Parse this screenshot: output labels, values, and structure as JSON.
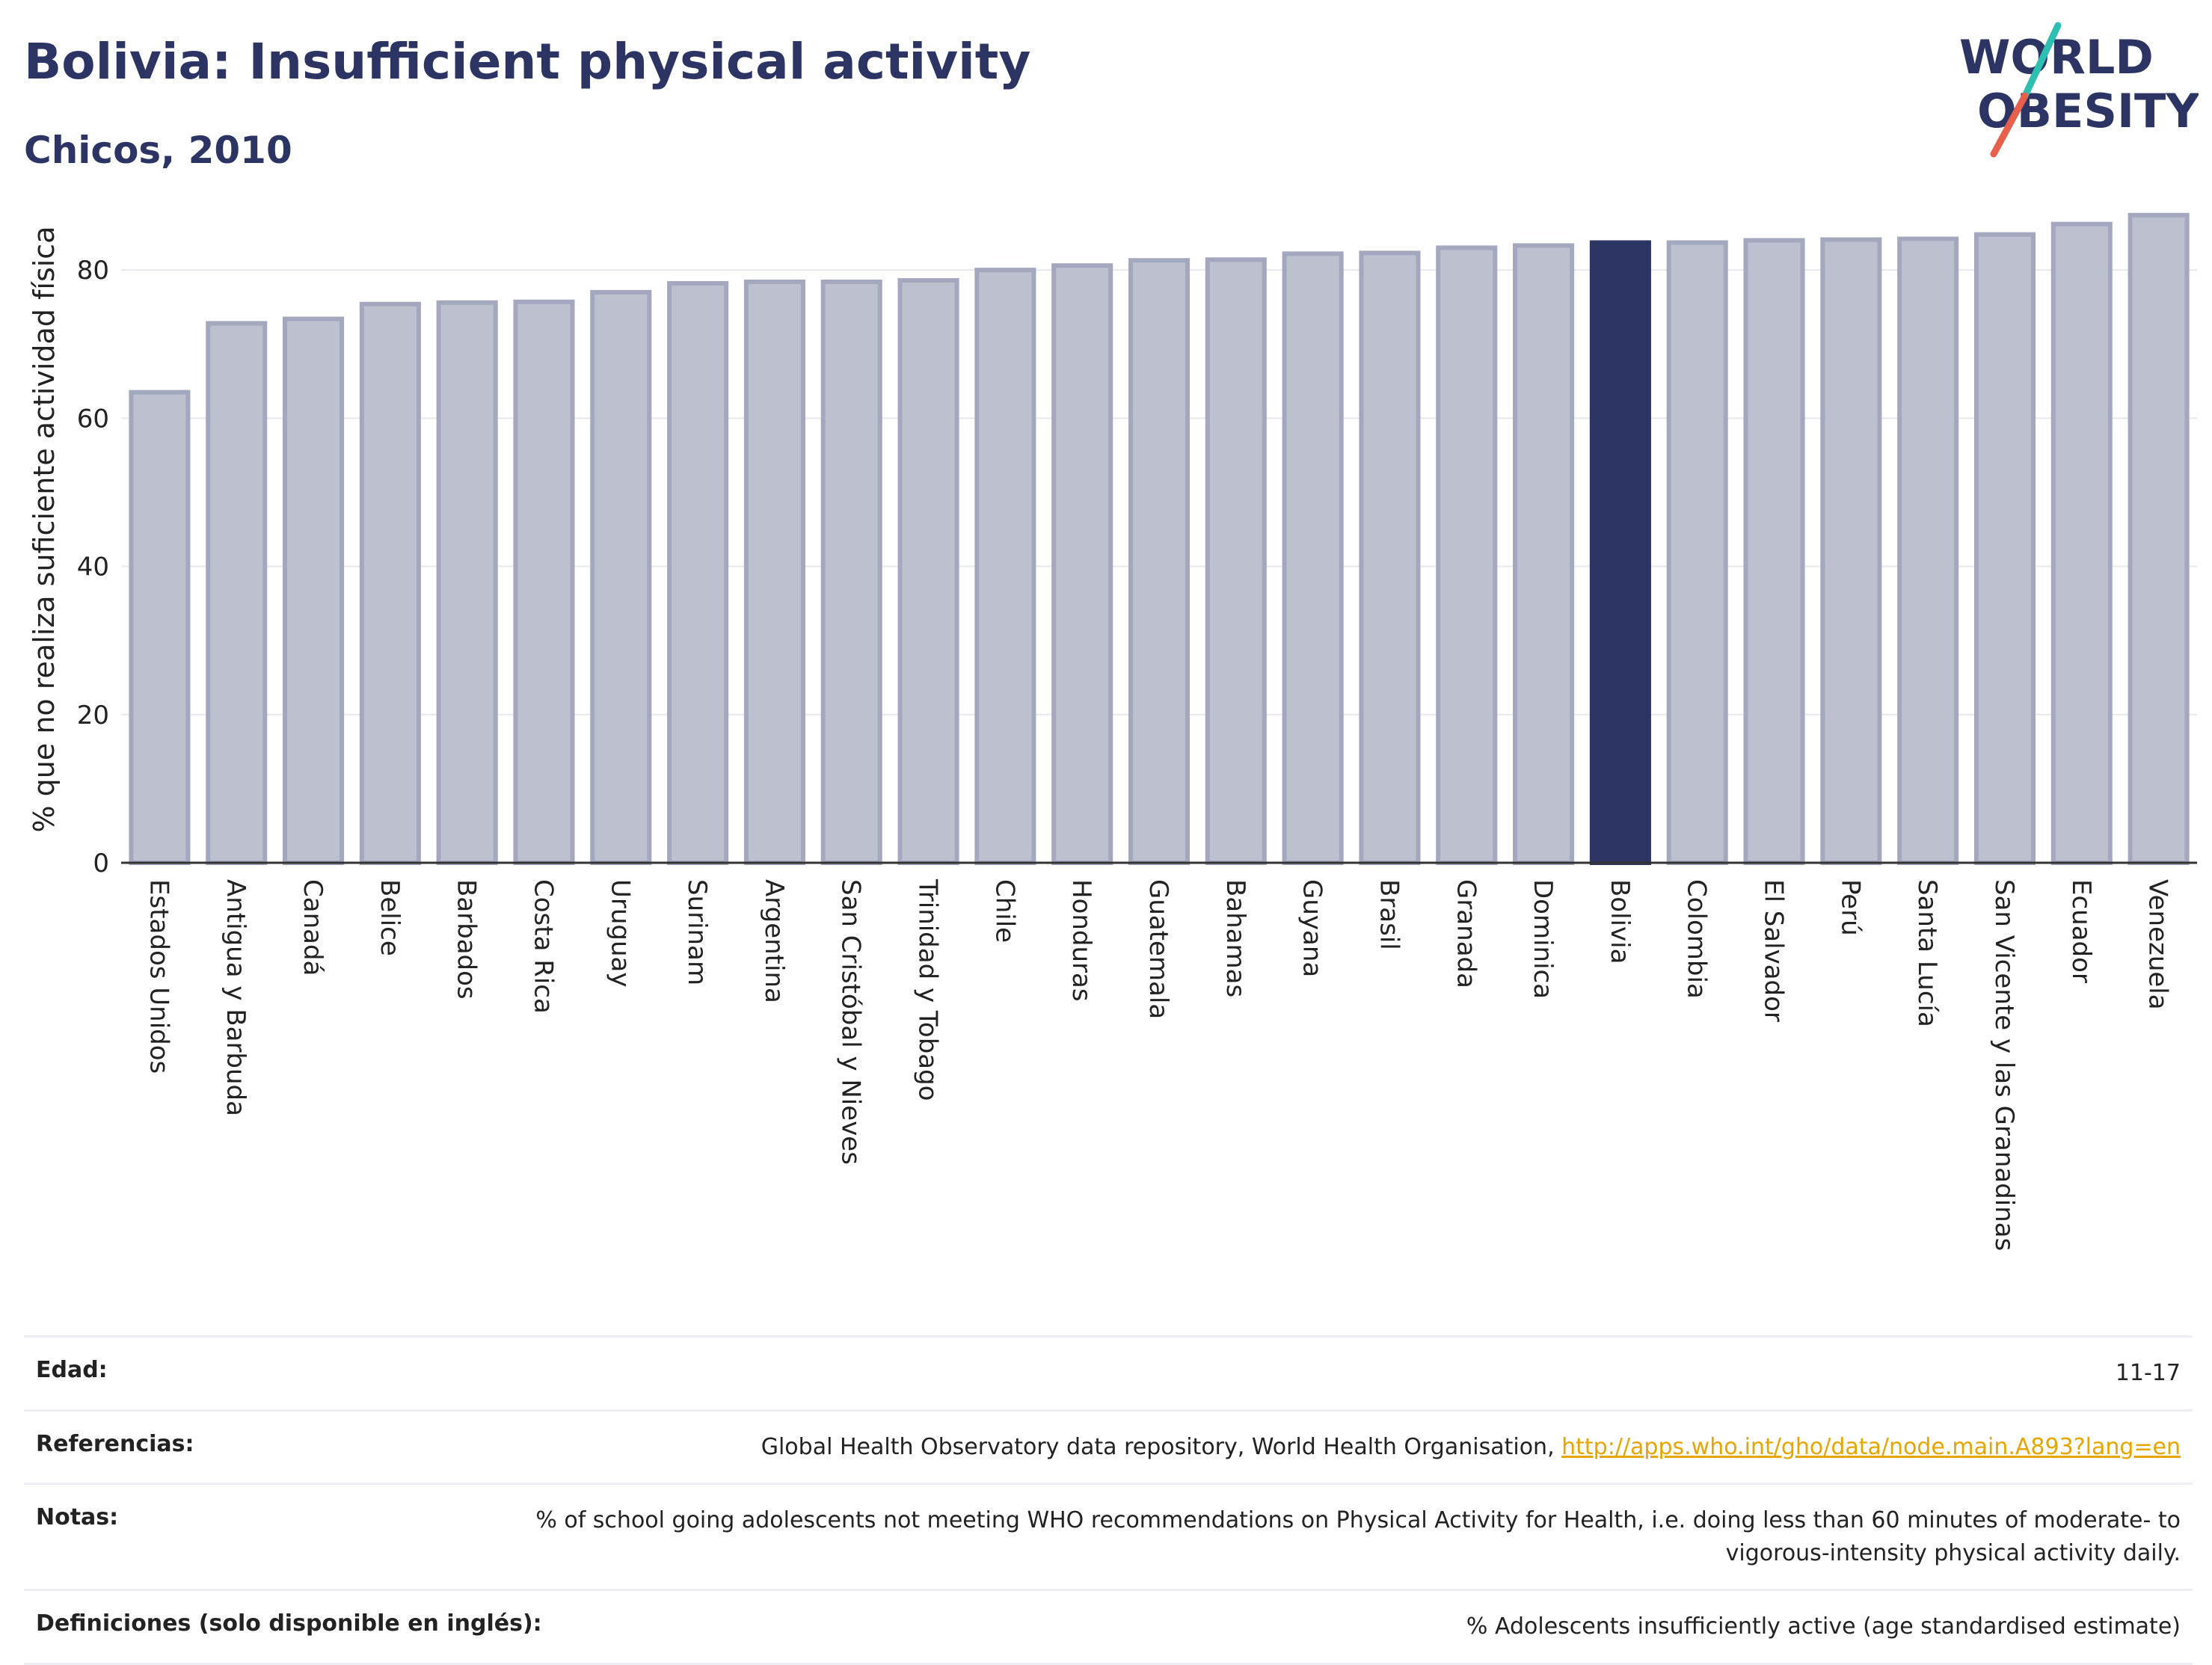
{
  "header": {
    "title": "Bolivia: Insufficient physical activity",
    "subtitle": "Chicos, 2010",
    "logo_line1": "WORLD",
    "logo_line2": "OBESITY"
  },
  "colors": {
    "bar": "#bcc0cf",
    "bar_border": "#a3a8be",
    "highlight": "#2b3463",
    "grid": "#e6e8ee",
    "logo_teal": "#2ebfb3",
    "logo_red": "#e8604c"
  },
  "chart_data": {
    "type": "bar",
    "ylabel": "% que no realiza suficiente actividad física",
    "ylim": [
      0,
      90
    ],
    "yticks": [
      0,
      20,
      40,
      60,
      80
    ],
    "grid": true,
    "highlight": "Bolivia",
    "categories": [
      "Estados Unidos",
      "Antigua y Barbuda",
      "Canadá",
      "Belice",
      "Barbados",
      "Costa Rica",
      "Uruguay",
      "Surinam",
      "Argentina",
      "San Cristóbal y Nieves",
      "Trinidad y Tobago",
      "Chile",
      "Honduras",
      "Guatemala",
      "Bahamas",
      "Guyana",
      "Brasil",
      "Granada",
      "Dominica",
      "Bolivia",
      "Colombia",
      "El Salvador",
      "Perú",
      "Santa Lucía",
      "San Vicente y las Granadinas",
      "Ecuador",
      "Venezuela"
    ],
    "values": [
      63.5,
      72.8,
      73.4,
      75.4,
      75.6,
      75.7,
      77.0,
      78.2,
      78.4,
      78.4,
      78.6,
      80.0,
      80.6,
      81.3,
      81.4,
      82.2,
      82.3,
      83.0,
      83.3,
      83.7,
      83.7,
      84.0,
      84.1,
      84.2,
      84.8,
      86.2,
      87.4
    ]
  },
  "meta": [
    {
      "label": "Edad:",
      "value": "11-17"
    },
    {
      "label": "Referencias:",
      "value": "Global Health Observatory data repository, World Health Organisation, ",
      "link": "http://apps.who.int/gho/data/node.main.A893?lang=en"
    },
    {
      "label": "Notas:",
      "value": "% of school going adolescents not meeting WHO recommendations on Physical Activity for Health, i.e. doing less than 60 minutes of moderate- to vigorous-intensity physical activity daily."
    },
    {
      "label": "Definiciones (solo disponible en inglés):",
      "value": "% Adolescents insufficiently active (age standardised estimate)"
    }
  ]
}
